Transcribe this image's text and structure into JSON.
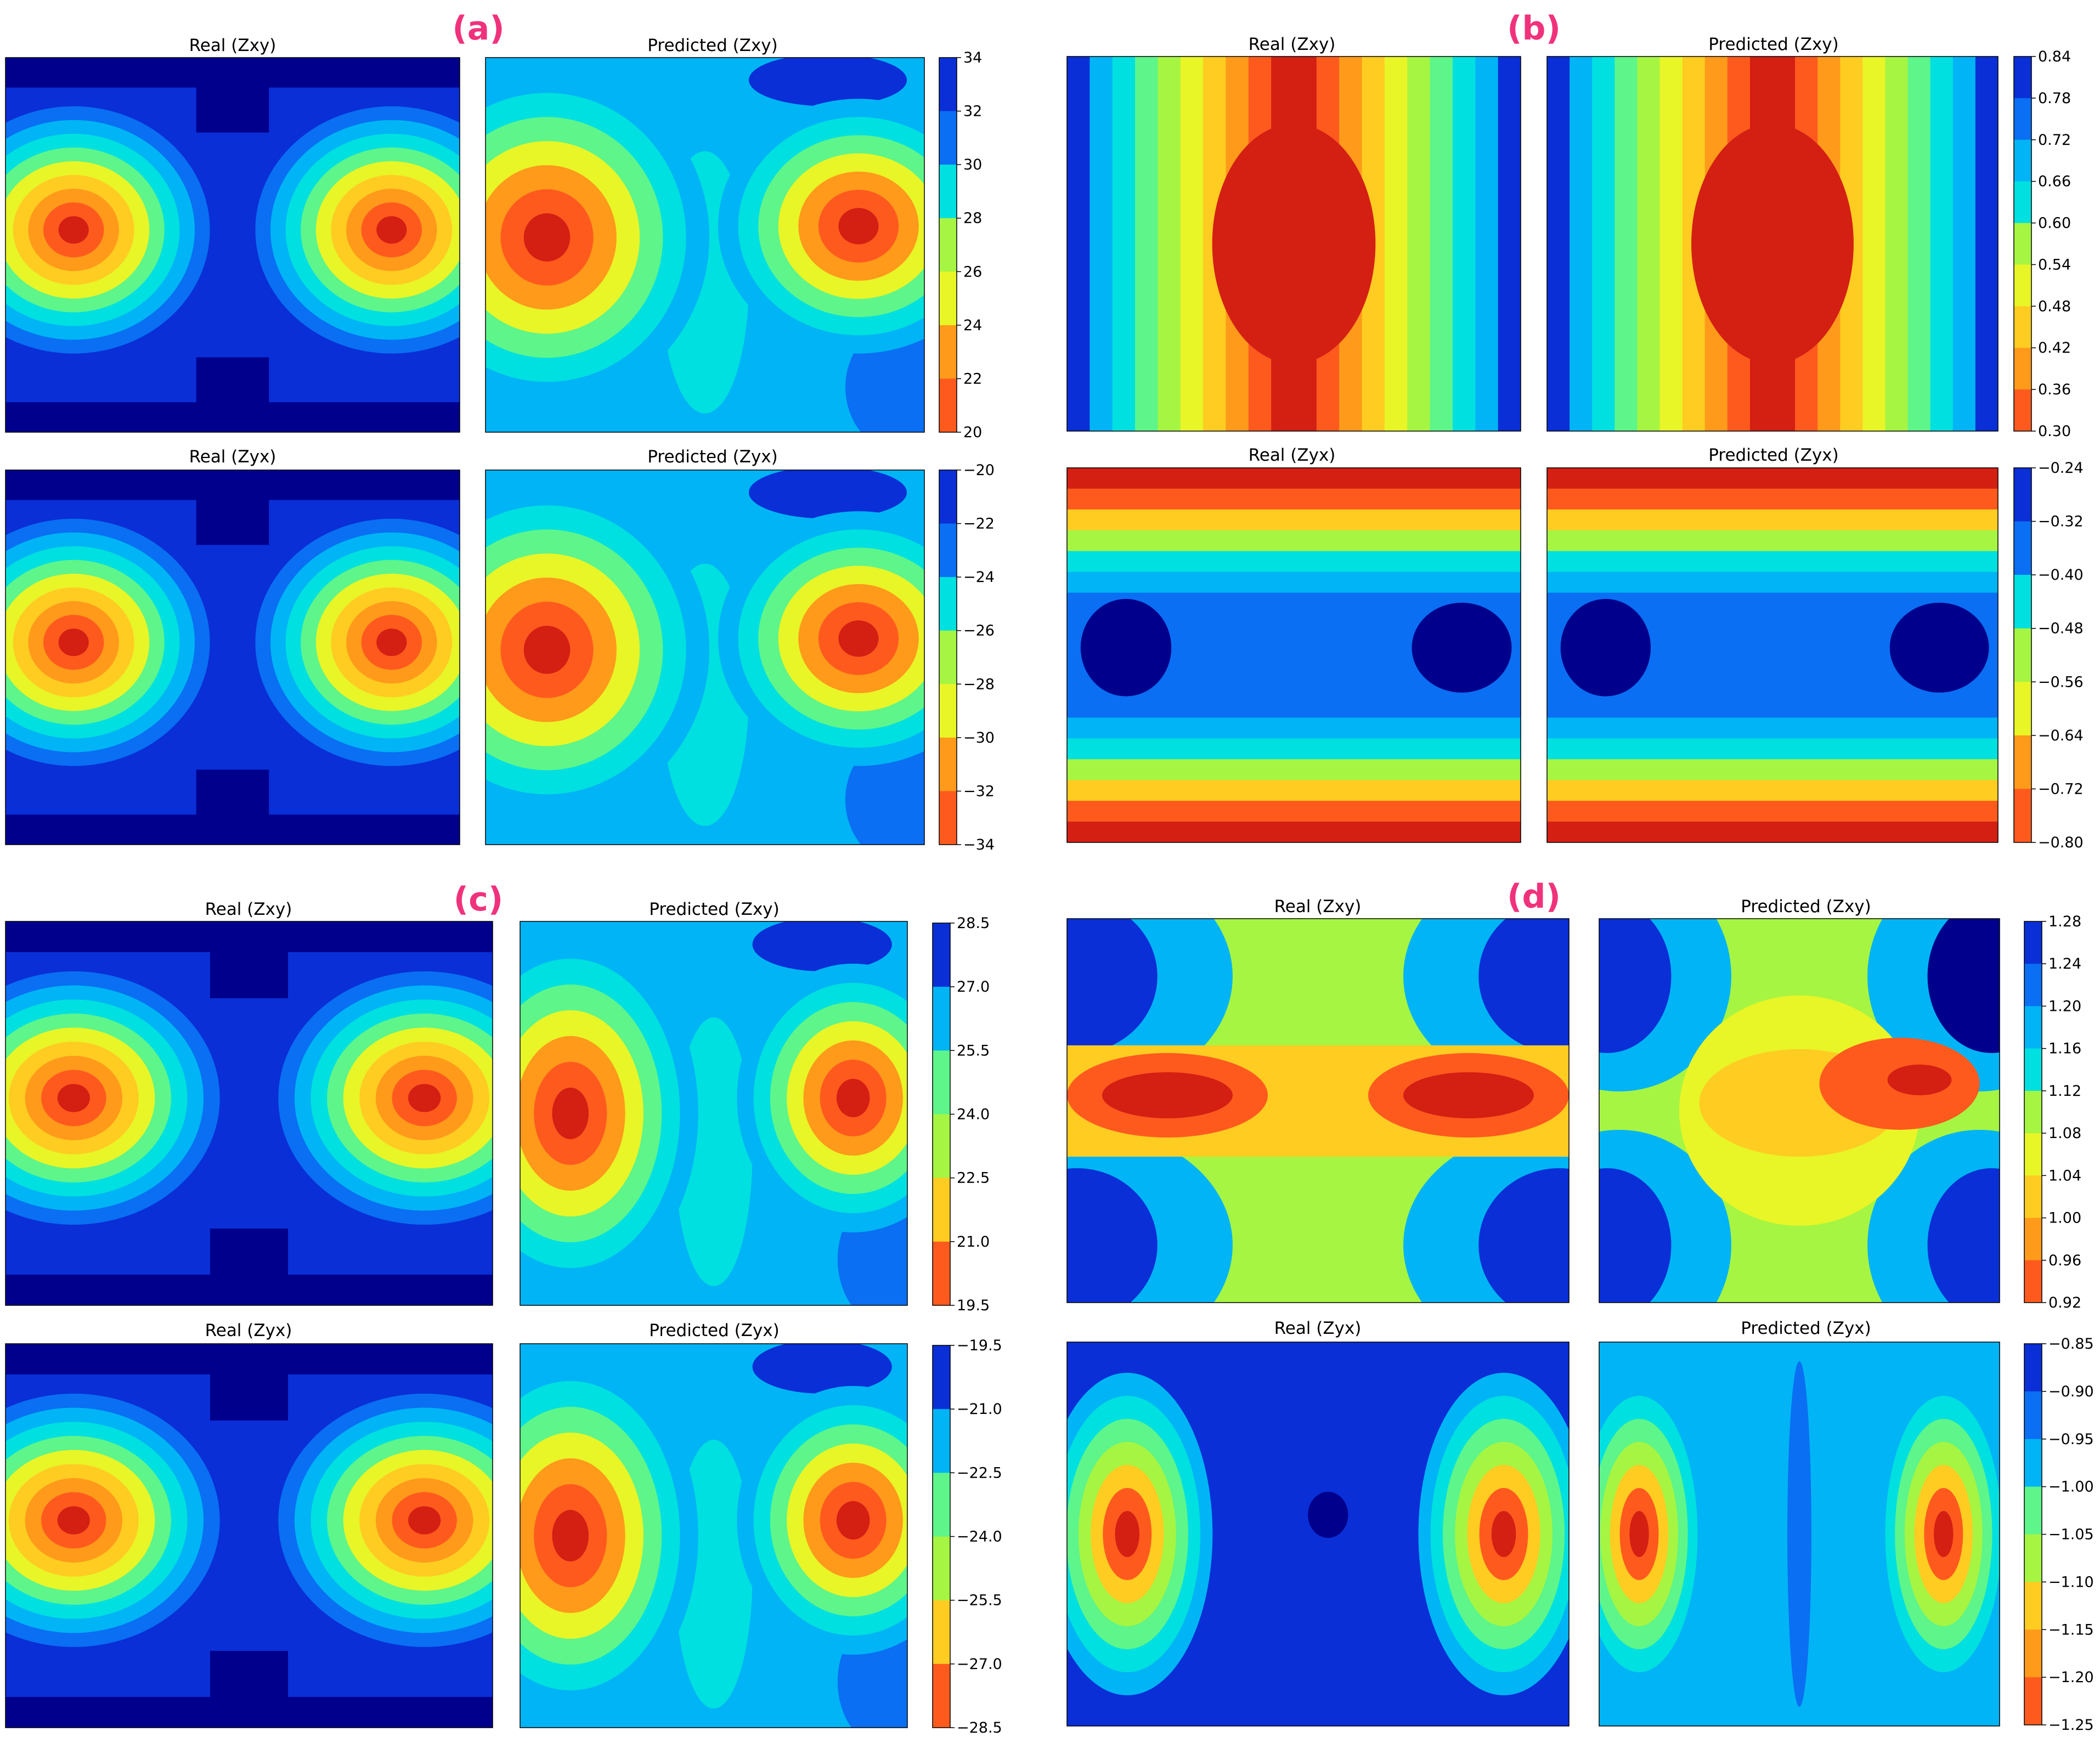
{
  "figure": {
    "panels": [
      {
        "label": "(a)",
        "titles": [
          "Real (Zxy)",
          "Predicted (Zxy)",
          "Real (Zyx)",
          "Predicted (Zyx)"
        ]
      },
      {
        "label": "(b)",
        "titles": [
          "Real (Zxy)",
          "Predicted (Zxy)",
          "Real (Zyx)",
          "Predicted (Zyx)"
        ]
      },
      {
        "label": "(c)",
        "titles": [
          "Real (Zxy)",
          "Predicted (Zxy)",
          "Real (Zyx)",
          "Predicted (Zyx)"
        ]
      },
      {
        "label": "(d)",
        "titles": [
          "Real (Zxy)",
          "Predicted (Zxy)",
          "Real (Zyx)",
          "Predicted (Zyx)"
        ]
      }
    ],
    "colormap": [
      "#00008c",
      "#0a2fd6",
      "#0a6ff2",
      "#00b4f5",
      "#00e0e0",
      "#5ef58a",
      "#a6f542",
      "#e8f527",
      "#ffcc22",
      "#ff9a1a",
      "#ff5a1e",
      "#d41f13"
    ],
    "label_color": "#f0327c"
  },
  "chart_data": [
    {
      "panel": "(a)",
      "type": "heatmap",
      "title": "Real (Zxy)",
      "colorbar_ticks": [
        "34",
        "32",
        "30",
        "28",
        "26",
        "24",
        "22",
        "20"
      ],
      "colorbar_range": [
        20,
        34
      ],
      "pattern": "two_blobs",
      "orientation": "high-blue",
      "blobs": [
        {
          "x": 0.15,
          "y": 0.46,
          "sx": 0.3,
          "sy": 0.33
        },
        {
          "x": 0.85,
          "y": 0.46,
          "sx": 0.3,
          "sy": 0.33
        }
      ]
    },
    {
      "panel": "(a)",
      "type": "heatmap",
      "title": "Predicted (Zxy)",
      "colorbar_ticks": [
        "34",
        "32",
        "30",
        "28",
        "26",
        "24",
        "22",
        "20"
      ],
      "colorbar_range": [
        20,
        34
      ],
      "pattern": "two_blobs_predicted",
      "blobs": [
        {
          "x": 0.14,
          "y": 0.48,
          "sx": 0.37,
          "sy": 0.45
        },
        {
          "x": 0.85,
          "y": 0.45,
          "sx": 0.32,
          "sy": 0.34
        }
      ]
    },
    {
      "panel": "(a)",
      "type": "heatmap",
      "title": "Real (Zyx)",
      "colorbar_ticks": [
        "−20",
        "−22",
        "−24",
        "−26",
        "−28",
        "−30",
        "−32",
        "−34"
      ],
      "colorbar_range": [
        -34,
        -20
      ],
      "pattern": "two_blobs",
      "blobs": [
        {
          "x": 0.15,
          "y": 0.46,
          "sx": 0.3,
          "sy": 0.33
        },
        {
          "x": 0.85,
          "y": 0.46,
          "sx": 0.3,
          "sy": 0.33
        }
      ]
    },
    {
      "panel": "(a)",
      "type": "heatmap",
      "title": "Predicted (Zyx)",
      "colorbar_ticks": [
        "−20",
        "−22",
        "−24",
        "−26",
        "−28",
        "−30",
        "−32",
        "−34"
      ],
      "colorbar_range": [
        -34,
        -20
      ],
      "pattern": "two_blobs_predicted",
      "blobs": [
        {
          "x": 0.14,
          "y": 0.48,
          "sx": 0.37,
          "sy": 0.45
        },
        {
          "x": 0.85,
          "y": 0.45,
          "sx": 0.32,
          "sy": 0.34
        }
      ]
    },
    {
      "panel": "(b)",
      "type": "heatmap",
      "title": "Real (Zxy)",
      "colorbar_ticks": [
        "0.84",
        "0.78",
        "0.72",
        "0.66",
        "0.60",
        "0.54",
        "0.48",
        "0.42",
        "0.36",
        "0.30"
      ],
      "colorbar_range": [
        0.3,
        0.84
      ],
      "pattern": "vertical_bands"
    },
    {
      "panel": "(b)",
      "type": "heatmap",
      "title": "Predicted (Zxy)",
      "colorbar_ticks": [
        "0.84",
        "0.78",
        "0.72",
        "0.66",
        "0.60",
        "0.54",
        "0.48",
        "0.42",
        "0.36",
        "0.30"
      ],
      "colorbar_range": [
        0.3,
        0.84
      ],
      "pattern": "vertical_bands"
    },
    {
      "panel": "(b)",
      "type": "heatmap",
      "title": "Real (Zyx)",
      "colorbar_ticks": [
        "−0.24",
        "−0.32",
        "−0.40",
        "−0.48",
        "−0.56",
        "−0.64",
        "−0.72",
        "−0.80"
      ],
      "colorbar_range": [
        -0.8,
        -0.24
      ],
      "pattern": "horizontal_bands"
    },
    {
      "panel": "(b)",
      "type": "heatmap",
      "title": "Predicted (Zyx)",
      "colorbar_ticks": [
        "−0.24",
        "−0.32",
        "−0.40",
        "−0.48",
        "−0.56",
        "−0.64",
        "−0.72",
        "−0.80"
      ],
      "colorbar_range": [
        -0.8,
        -0.24
      ],
      "pattern": "horizontal_bands"
    },
    {
      "panel": "(c)",
      "type": "heatmap",
      "title": "Real (Zxy)",
      "colorbar_ticks": [
        "28.5",
        "27.0",
        "25.5",
        "24.0",
        "22.5",
        "21.0",
        "19.5"
      ],
      "colorbar_range": [
        19.5,
        28.5
      ],
      "pattern": "two_blobs",
      "blobs": [
        {
          "x": 0.14,
          "y": 0.46,
          "sx": 0.3,
          "sy": 0.33
        },
        {
          "x": 0.86,
          "y": 0.46,
          "sx": 0.3,
          "sy": 0.33
        }
      ]
    },
    {
      "panel": "(c)",
      "type": "heatmap",
      "title": "Predicted (Zxy)",
      "colorbar_ticks": [
        "28.5",
        "27.0",
        "25.5",
        "24.0",
        "22.5",
        "21.0",
        "19.5"
      ],
      "colorbar_range": [
        19.5,
        28.5
      ],
      "pattern": "two_blobs_predicted",
      "blobs": [
        {
          "x": 0.13,
          "y": 0.5,
          "sx": 0.33,
          "sy": 0.47
        },
        {
          "x": 0.86,
          "y": 0.46,
          "sx": 0.3,
          "sy": 0.35
        }
      ]
    },
    {
      "panel": "(c)",
      "type": "heatmap",
      "title": "Real (Zyx)",
      "colorbar_ticks": [
        "−19.5",
        "−21.0",
        "−22.5",
        "−24.0",
        "−25.5",
        "−27.0",
        "−28.5"
      ],
      "colorbar_range": [
        -28.5,
        -19.5
      ],
      "pattern": "two_blobs",
      "blobs": [
        {
          "x": 0.14,
          "y": 0.46,
          "sx": 0.3,
          "sy": 0.33
        },
        {
          "x": 0.86,
          "y": 0.46,
          "sx": 0.3,
          "sy": 0.33
        }
      ]
    },
    {
      "panel": "(c)",
      "type": "heatmap",
      "title": "Predicted (Zyx)",
      "colorbar_ticks": [
        "−19.5",
        "−21.0",
        "−22.5",
        "−24.0",
        "−25.5",
        "−27.0",
        "−28.5"
      ],
      "colorbar_range": [
        -28.5,
        -19.5
      ],
      "pattern": "two_blobs_predicted",
      "blobs": [
        {
          "x": 0.13,
          "y": 0.5,
          "sx": 0.33,
          "sy": 0.47
        },
        {
          "x": 0.86,
          "y": 0.46,
          "sx": 0.3,
          "sy": 0.35
        }
      ]
    },
    {
      "panel": "(d)",
      "type": "heatmap",
      "title": "Real (Zxy)",
      "colorbar_ticks": [
        "1.28",
        "1.24",
        "1.20",
        "1.16",
        "1.12",
        "1.08",
        "1.04",
        "1.00",
        "0.96",
        "0.92"
      ],
      "colorbar_range": [
        0.92,
        1.28
      ],
      "pattern": "center_band_real"
    },
    {
      "panel": "(d)",
      "type": "heatmap",
      "title": "Predicted (Zxy)",
      "colorbar_ticks": [
        "1.28",
        "1.24",
        "1.20",
        "1.16",
        "1.12",
        "1.08",
        "1.04",
        "1.00",
        "0.96",
        "0.92"
      ],
      "colorbar_range": [
        0.92,
        1.28
      ],
      "pattern": "center_band_predicted"
    },
    {
      "panel": "(d)",
      "type": "heatmap",
      "title": "Real (Zyx)",
      "colorbar_ticks": [
        "−0.85",
        "−0.90",
        "−0.95",
        "−1.00",
        "−1.05",
        "−1.10",
        "−1.15",
        "−1.20",
        "−1.25"
      ],
      "colorbar_range": [
        -1.25,
        -0.85
      ],
      "pattern": "side_blobs_real"
    },
    {
      "panel": "(d)",
      "type": "heatmap",
      "title": "Predicted (Zyx)",
      "colorbar_ticks": [
        "−0.85",
        "−0.90",
        "−0.95",
        "−1.00",
        "−1.05",
        "−1.10",
        "−1.15",
        "−1.20",
        "−1.25"
      ],
      "colorbar_range": [
        -1.25,
        -0.85
      ],
      "pattern": "side_blobs_predicted"
    }
  ]
}
